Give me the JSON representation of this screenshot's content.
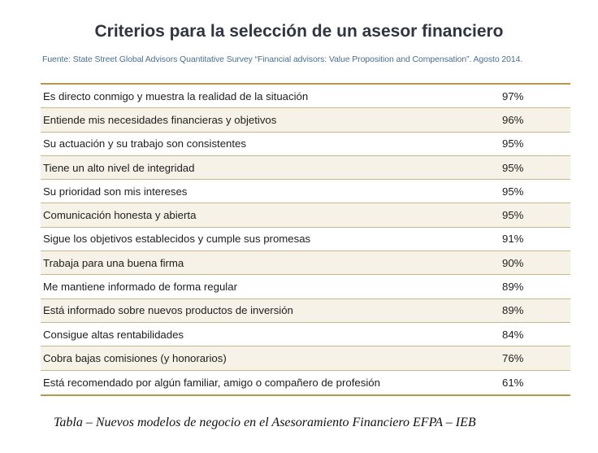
{
  "title": "Criterios para la selección de un asesor financiero",
  "source": "Fuente: State Street Global Advisors Quantitative Survey “Financial advisors: Value Proposition and Compensation”. Agosto 2014.",
  "colors": {
    "rule": "#b39a4a",
    "source_text": "#4a6f8e",
    "row_alt": "#f6f2e7"
  },
  "rows": [
    {
      "criterion": "Es directo conmigo y muestra la realidad de la situación",
      "value": "97%"
    },
    {
      "criterion": "Entiende mis necesidades financieras y objetivos",
      "value": "96%"
    },
    {
      "criterion": "Su actuación y su trabajo son consistentes",
      "value": "95%"
    },
    {
      "criterion": "Tiene un alto nivel de integridad",
      "value": "95%"
    },
    {
      "criterion": "Su prioridad son mis intereses",
      "value": "95%"
    },
    {
      "criterion": "Comunicación honesta y abierta",
      "value": "95%"
    },
    {
      "criterion": "Sigue los objetivos establecidos y cumple sus promesas",
      "value": "91%"
    },
    {
      "criterion": "Trabaja para una buena firma",
      "value": "90%"
    },
    {
      "criterion": "Me mantiene informado de forma regular",
      "value": "89%"
    },
    {
      "criterion": "Está informado sobre nuevos productos de inversión",
      "value": "89%"
    },
    {
      "criterion": "Consigue altas rentabilidades",
      "value": "84%"
    },
    {
      "criterion": "Cobra bajas comisiones (y honorarios)",
      "value": "76%"
    },
    {
      "criterion": "Está recomendado por algún familiar, amigo o compañero de profesión",
      "value": "61%"
    }
  ],
  "caption": "Tabla – Nuevos modelos de negocio en el Asesoramiento Financiero EFPA – IEB"
}
